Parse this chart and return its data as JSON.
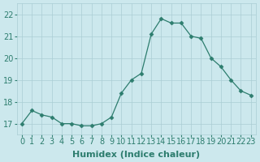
{
  "x": [
    0,
    1,
    2,
    3,
    4,
    5,
    6,
    7,
    8,
    9,
    10,
    11,
    12,
    13,
    14,
    15,
    16,
    17,
    18,
    19,
    20,
    21,
    22,
    23
  ],
  "y": [
    17.0,
    17.6,
    17.4,
    17.3,
    17.0,
    17.0,
    16.9,
    16.9,
    17.0,
    17.3,
    18.4,
    19.0,
    19.3,
    21.1,
    21.8,
    21.6,
    21.6,
    21.0,
    20.9,
    20.0,
    19.6,
    19.0,
    18.5,
    18.3
  ],
  "xlabel": "Humidex (Indice chaleur)",
  "xlim": [
    -0.5,
    23.5
  ],
  "ylim": [
    16.5,
    22.5
  ],
  "yticks": [
    17,
    18,
    19,
    20,
    21,
    22
  ],
  "xticks": [
    0,
    1,
    2,
    3,
    4,
    5,
    6,
    7,
    8,
    9,
    10,
    11,
    12,
    13,
    14,
    15,
    16,
    17,
    18,
    19,
    20,
    21,
    22,
    23
  ],
  "xtick_labels": [
    "0",
    "1",
    "2",
    "3",
    "4",
    "5",
    "6",
    "7",
    "8",
    "9",
    "10",
    "11",
    "12",
    "13",
    "14",
    "15",
    "16",
    "17",
    "18",
    "19",
    "20",
    "21",
    "22",
    "23"
  ],
  "line_color": "#2d7d6e",
  "marker": "D",
  "marker_size": 2.5,
  "bg_color": "#cce8ed",
  "grid_color": "#aacdd4",
  "label_fontsize": 8,
  "tick_fontsize": 7
}
